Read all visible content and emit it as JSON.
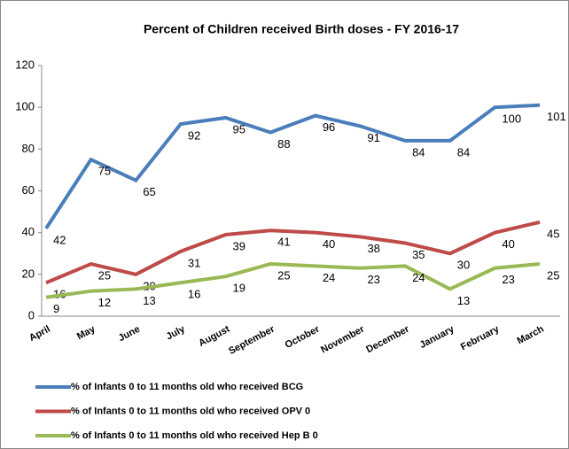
{
  "chart_data": {
    "type": "line",
    "title": "Percent of Children received Birth doses - FY 2016-17",
    "categories": [
      "April",
      "May",
      "June",
      "July",
      "August",
      "September",
      "October",
      "November",
      "December",
      "January",
      "February",
      "March"
    ],
    "series": [
      {
        "name": "% of Infants 0 to 11 months old who received BCG",
        "color": "#4a7ebb",
        "values": [
          42,
          75,
          65,
          92,
          95,
          88,
          96,
          91,
          84,
          84,
          100,
          101
        ]
      },
      {
        "name": "% of Infants 0 to 11 months old who received OPV 0",
        "color": "#be4b48",
        "values": [
          16,
          25,
          20,
          31,
          39,
          41,
          40,
          38,
          35,
          30,
          40,
          45
        ]
      },
      {
        "name": "% of Infants 0 to 11 months old who received Hep B 0",
        "color": "#98b954",
        "values": [
          9,
          12,
          13,
          16,
          19,
          25,
          24,
          23,
          24,
          13,
          23,
          25
        ]
      }
    ],
    "ylim": [
      0,
      120
    ],
    "yticks": [
      0,
      20,
      40,
      60,
      80,
      100,
      120
    ],
    "grid": false,
    "legend": "bottom"
  }
}
